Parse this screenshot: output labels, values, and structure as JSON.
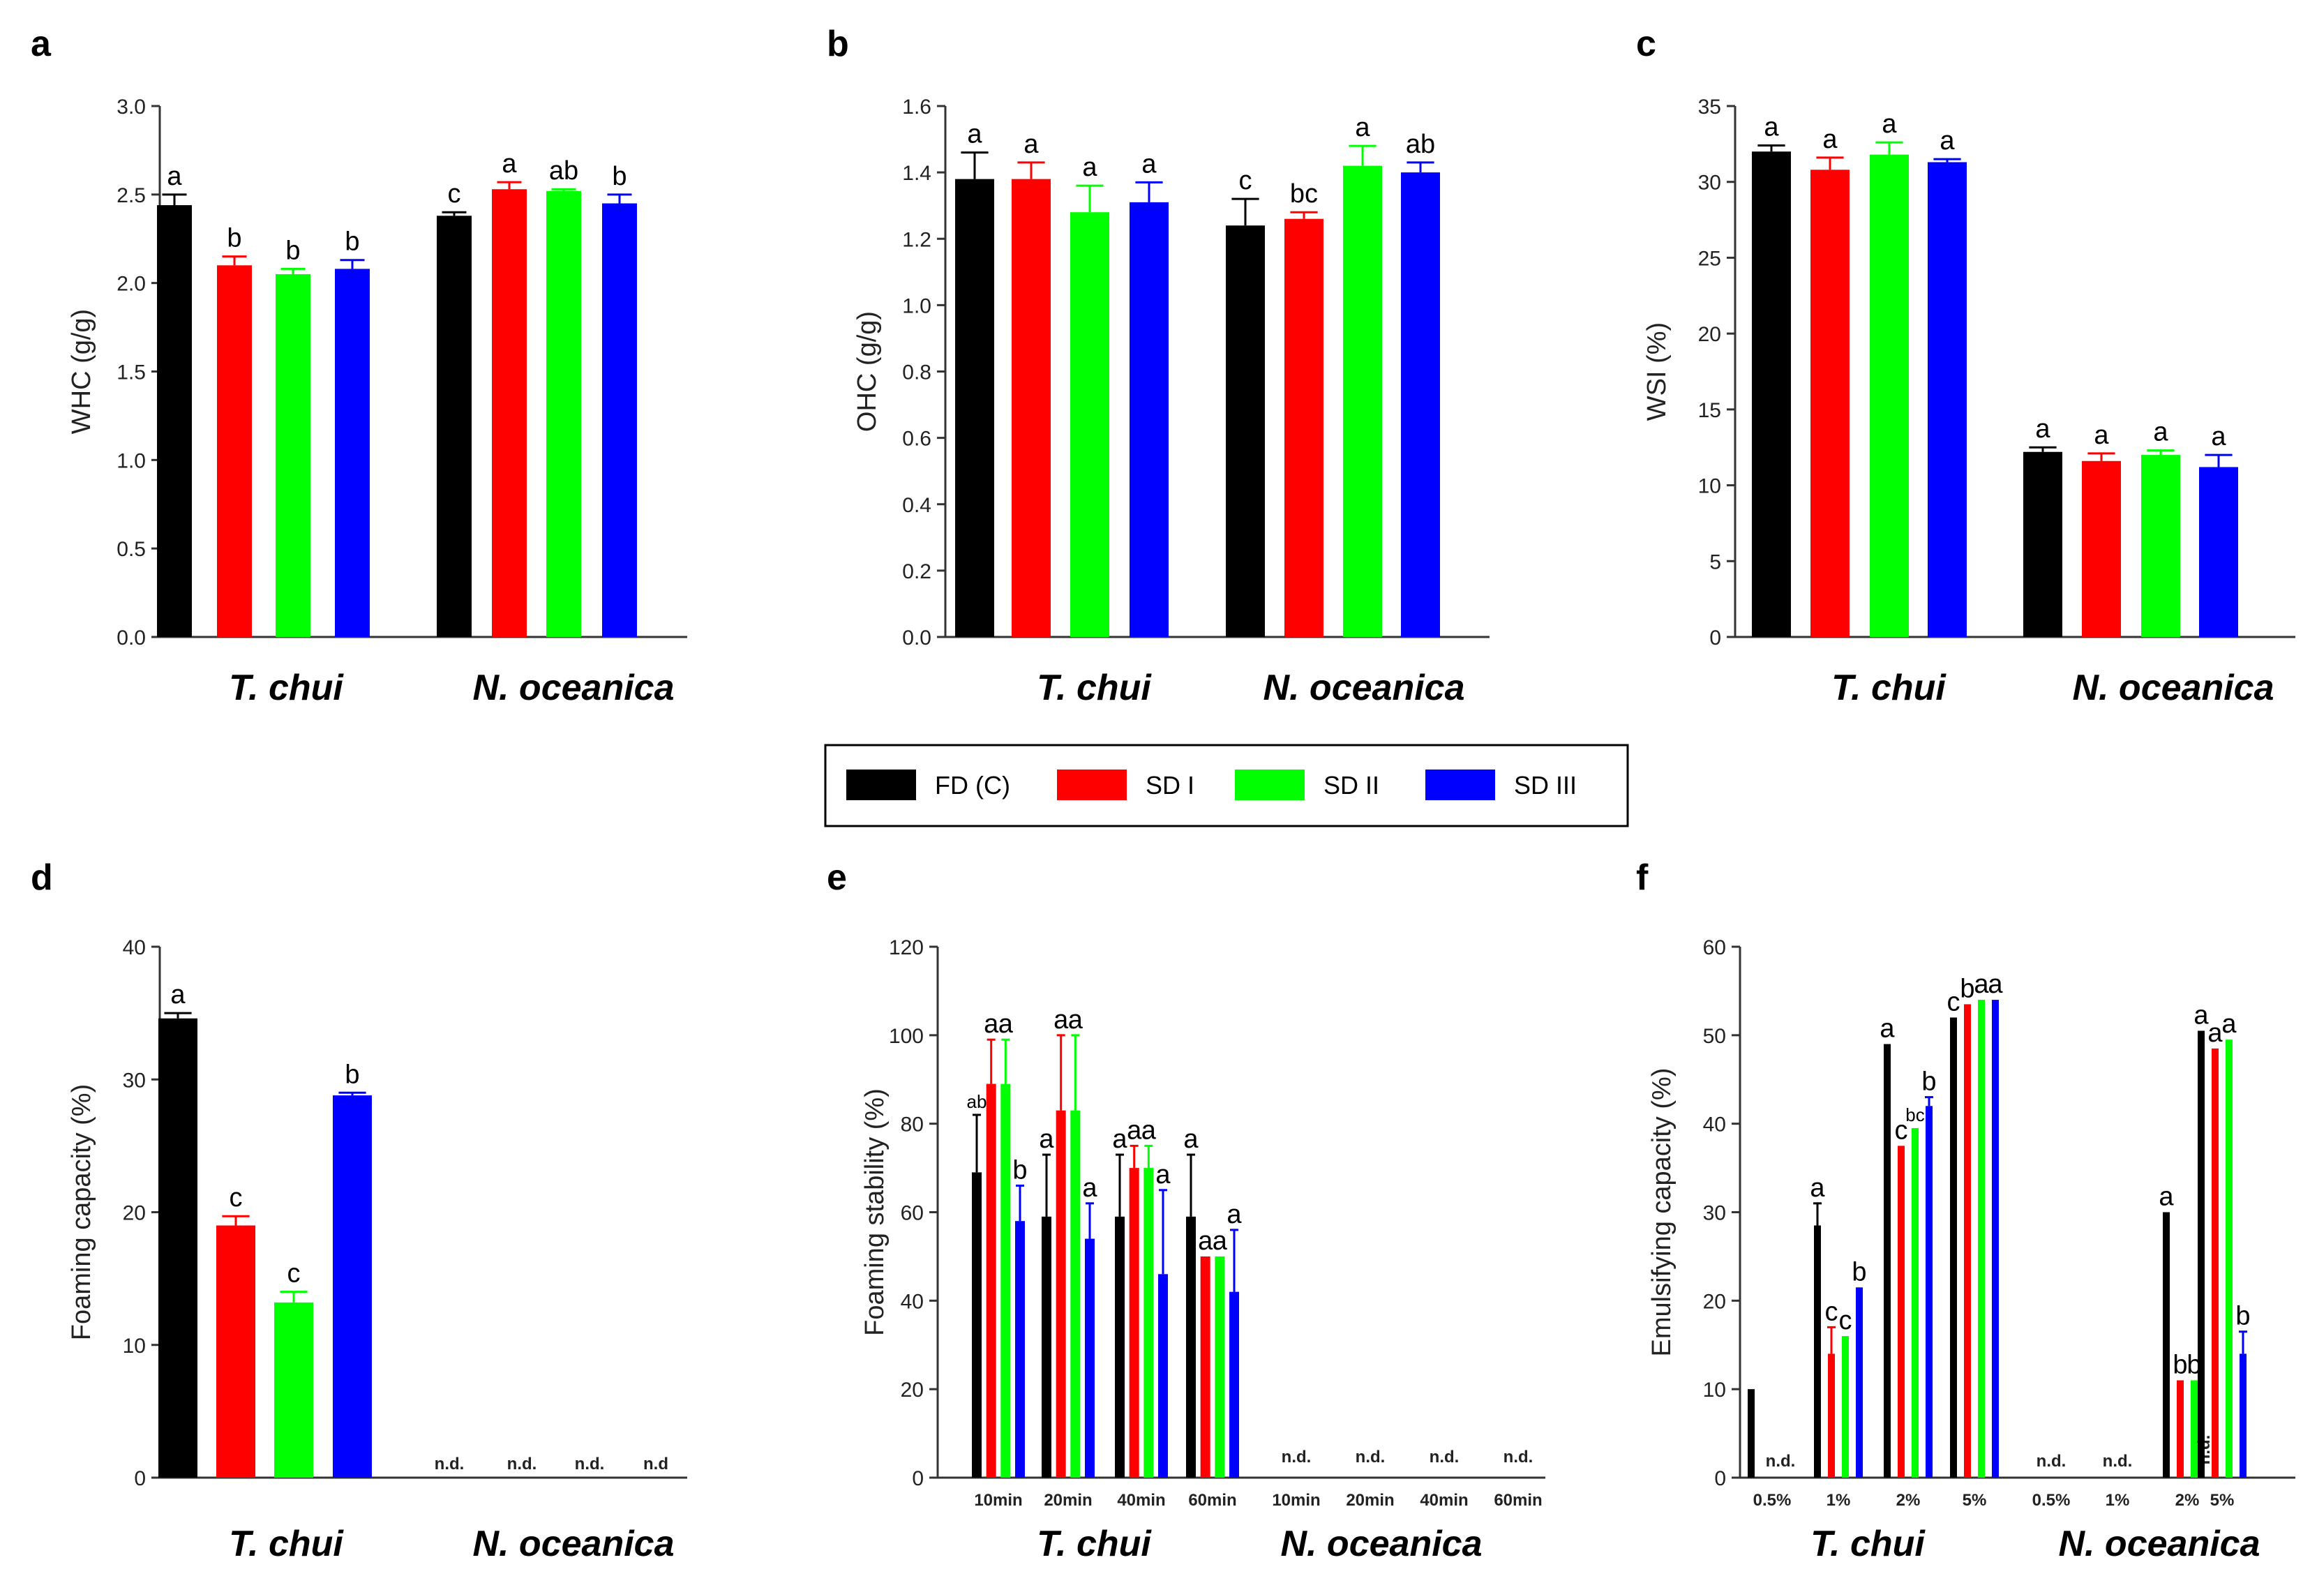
{
  "legend": {
    "items": [
      {
        "label": "FD (C)",
        "color": "#000000"
      },
      {
        "label": "SD I",
        "color": "#ff0000"
      },
      {
        "label": "SD II",
        "color": "#00ff00"
      },
      {
        "label": "SD III",
        "color": "#0000ff"
      }
    ]
  },
  "chart_data": [
    {
      "id": "a",
      "type": "bar",
      "letter": "a",
      "ylabel": "WHC (g/g)",
      "ylim": [
        0,
        3.0
      ],
      "yticks": [
        "0.0",
        "0.5",
        "1.0",
        "1.5",
        "2.0",
        "2.5",
        "3.0"
      ],
      "groups": [
        {
          "label": "T. chui",
          "values": [
            2.44,
            2.1,
            2.05,
            2.08
          ],
          "errors": [
            0.06,
            0.05,
            0.03,
            0.05
          ],
          "sig": [
            "a",
            "b",
            "b",
            "b"
          ]
        },
        {
          "label": "N. oceanica",
          "values": [
            2.38,
            2.53,
            2.52,
            2.45
          ],
          "errors": [
            0.02,
            0.04,
            0.01,
            0.05
          ],
          "sig": [
            "c",
            "a",
            "ab",
            "b"
          ]
        }
      ]
    },
    {
      "id": "b",
      "type": "bar",
      "letter": "b",
      "ylabel": "OHC (g/g)",
      "ylim": [
        0,
        1.6
      ],
      "yticks": [
        "0.0",
        "0.2",
        "0.4",
        "0.6",
        "0.8",
        "1.0",
        "1.2",
        "1.4",
        "1.6"
      ],
      "groups": [
        {
          "label": "T. chui",
          "values": [
            1.38,
            1.38,
            1.28,
            1.31
          ],
          "errors": [
            0.08,
            0.05,
            0.08,
            0.06
          ],
          "sig": [
            "a",
            "a",
            "a",
            "a"
          ]
        },
        {
          "label": "N. oceanica",
          "values": [
            1.24,
            1.26,
            1.42,
            1.4
          ],
          "errors": [
            0.08,
            0.02,
            0.06,
            0.03
          ],
          "sig": [
            "c",
            "bc",
            "a",
            "ab"
          ]
        }
      ]
    },
    {
      "id": "c",
      "type": "bar",
      "letter": "c",
      "ylabel": "WSI (%)",
      "ylim": [
        0,
        35
      ],
      "yticks": [
        "0",
        "5",
        "10",
        "15",
        "20",
        "25",
        "30",
        "35"
      ],
      "groups": [
        {
          "label": "T. chui",
          "values": [
            32.0,
            30.8,
            31.8,
            31.3
          ],
          "errors": [
            0.4,
            0.8,
            0.8,
            0.2
          ],
          "sig": [
            "a",
            "a",
            "a",
            "a"
          ]
        },
        {
          "label": "N. oceanica",
          "values": [
            12.2,
            11.6,
            12.0,
            11.2
          ],
          "errors": [
            0.3,
            0.5,
            0.3,
            0.8
          ],
          "sig": [
            "a",
            "a",
            "a",
            "a"
          ]
        }
      ]
    },
    {
      "id": "d",
      "type": "bar",
      "letter": "d",
      "ylabel": "Foaming capacity (%)",
      "ylim": [
        0,
        40
      ],
      "yticks": [
        "0",
        "10",
        "20",
        "30",
        "40"
      ],
      "groups": [
        {
          "label": "T. chui",
          "values": [
            34.6,
            19.0,
            13.2,
            28.8
          ],
          "errors": [
            0.4,
            0.7,
            0.8,
            0.2
          ],
          "sig": [
            "a",
            "c",
            "c",
            "b"
          ]
        }
      ],
      "nd_group": {
        "label": "N. oceanica",
        "marks": [
          "n.d.",
          "n.d.",
          "n.d.",
          "n.d"
        ]
      }
    },
    {
      "id": "e",
      "type": "bar",
      "letter": "e",
      "ylabel": "Foaming stability (%)",
      "ylim": [
        0,
        120
      ],
      "yticks": [
        "0",
        "20",
        "40",
        "60",
        "80",
        "100",
        "120"
      ],
      "categories": [
        "10min",
        "20min",
        "40min",
        "60min"
      ],
      "groups": [
        {
          "label": "T. chui",
          "cells": [
            {
              "values": [
                69,
                89,
                89,
                58
              ],
              "errors": [
                13,
                10,
                10,
                8
              ],
              "sig": [
                "ab",
                "a",
                "a",
                "b"
              ]
            },
            {
              "values": [
                59,
                83,
                83,
                54
              ],
              "errors": [
                14,
                17,
                17,
                8
              ],
              "sig": [
                "a",
                "a",
                "a",
                "a"
              ]
            },
            {
              "values": [
                59,
                70,
                70,
                46
              ],
              "errors": [
                14,
                5,
                5,
                19
              ],
              "sig": [
                "a",
                "a",
                "a",
                "a"
              ]
            },
            {
              "values": [
                59,
                50,
                50,
                42
              ],
              "errors": [
                14,
                0,
                0,
                14
              ],
              "sig": [
                "a",
                "a",
                "a",
                "a"
              ]
            }
          ]
        }
      ],
      "nd_group": {
        "label": "N. oceanica",
        "categories": [
          "10min",
          "20min",
          "40min",
          "60min"
        ],
        "marks": [
          "n.d.",
          "n.d.",
          "n.d.",
          "n.d."
        ]
      }
    },
    {
      "id": "f",
      "type": "bar",
      "letter": "f",
      "ylabel": "Emulsifying capacity (%)",
      "ylim": [
        0,
        60
      ],
      "yticks": [
        "0",
        "10",
        "20",
        "30",
        "40",
        "50",
        "60"
      ],
      "groups": [
        {
          "label": "T. chui",
          "cells": [
            {
              "category": "0.5%",
              "values": [
                10,
                null,
                null,
                null
              ],
              "errors": [
                0,
                0,
                0,
                0
              ],
              "sig": [
                "",
                "",
                "",
                ""
              ],
              "nd": "n.d."
            },
            {
              "category": "1%",
              "values": [
                28.5,
                14,
                16,
                21.5
              ],
              "errors": [
                2.5,
                3,
                0,
                0
              ],
              "sig": [
                "a",
                "c",
                "c",
                "b"
              ]
            },
            {
              "category": "2%",
              "values": [
                49,
                37.5,
                39.5,
                42
              ],
              "errors": [
                0,
                0,
                0,
                1
              ],
              "sig": [
                "a",
                "c",
                "bc",
                "b"
              ]
            },
            {
              "category": "5%",
              "values": [
                52,
                53.5,
                54,
                54
              ],
              "errors": [
                0,
                0,
                0,
                0
              ],
              "sig": [
                "c",
                "b",
                "a",
                "a"
              ]
            }
          ]
        },
        {
          "label": "N. oceanica",
          "cells": [
            {
              "category": "0.5%",
              "values": [
                null,
                null,
                null,
                null
              ],
              "errors": [
                0,
                0,
                0,
                0
              ],
              "sig": [
                "",
                "",
                "",
                ""
              ],
              "nd": "n.d."
            },
            {
              "category": "1%",
              "values": [
                null,
                null,
                null,
                null
              ],
              "errors": [
                0,
                0,
                0,
                0
              ],
              "sig": [
                "",
                "",
                "",
                ""
              ],
              "nd": "n.d."
            },
            {
              "category": "2%",
              "values": [
                30,
                11,
                11,
                null
              ],
              "errors": [
                0,
                0,
                0,
                0
              ],
              "sig": [
                "a",
                "b",
                "b",
                ""
              ],
              "nd": "n.d."
            },
            {
              "category": "5%",
              "values": [
                50.5,
                48.5,
                49.5,
                14
              ],
              "errors": [
                0,
                0,
                0,
                2.5
              ],
              "sig": [
                "a",
                "a",
                "a",
                "b"
              ]
            }
          ]
        }
      ]
    }
  ]
}
